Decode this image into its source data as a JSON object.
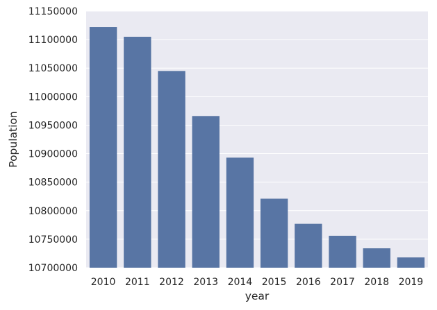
{
  "chart_data": {
    "type": "bar",
    "categories": [
      "2010",
      "2011",
      "2012",
      "2013",
      "2014",
      "2015",
      "2016",
      "2017",
      "2018",
      "2019"
    ],
    "values": [
      11122000,
      11105000,
      11045000,
      10966000,
      10893000,
      10821000,
      10777000,
      10756000,
      10734000,
      10718000
    ],
    "xlabel": "year",
    "ylabel": "Population",
    "ylim": [
      10700000,
      11150000
    ],
    "yticks": [
      "10700000",
      "10750000",
      "10800000",
      "10850000",
      "10900000",
      "10950000",
      "11000000",
      "11050000",
      "11100000",
      "11150000"
    ],
    "grid": true,
    "legend": "none"
  },
  "colors": {
    "background": "#eaeaf2",
    "bar": "#5875a4",
    "grid": "#ffffff",
    "text": "#262626"
  }
}
